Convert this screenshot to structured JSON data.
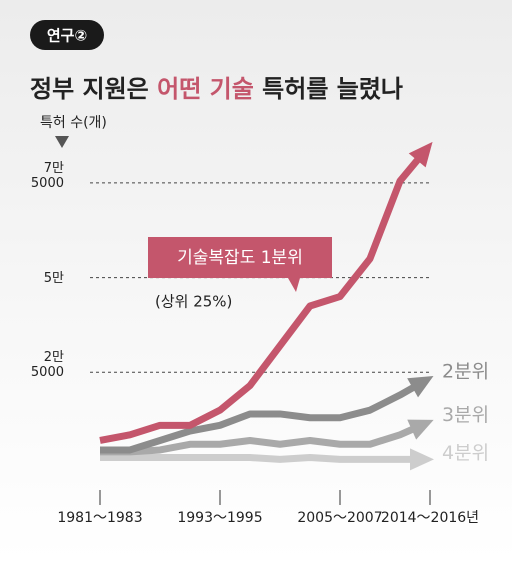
{
  "chart_data": {
    "type": "line",
    "badge": "연구②",
    "title": [
      "정부 지원은 ",
      "어떤 기술",
      " 특허를 늘렸나"
    ],
    "y_axis_label": "특허 수(개)",
    "categories": [
      "1981～1983",
      null,
      null,
      null,
      "1993～1995",
      null,
      null,
      null,
      "2005～2007",
      null,
      null,
      "2014～2016년"
    ],
    "series": [
      {
        "name": "기술복잡도 1분위",
        "color": "#c4566c",
        "values": [
          7000,
          8500,
          11000,
          11000,
          15000,
          21500,
          32000,
          42500,
          45000,
          55000,
          75500,
          85000
        ]
      },
      {
        "name": "2분위",
        "color": "#8c8c8c",
        "values": [
          4500,
          4500,
          7000,
          9500,
          11000,
          14000,
          14000,
          13000,
          13000,
          15000,
          19000,
          23500
        ]
      },
      {
        "name": "3분위",
        "color": "#a9a9a9",
        "values": [
          4000,
          4000,
          4500,
          6000,
          6000,
          7000,
          6000,
          7000,
          6000,
          6000,
          8500,
          12000
        ]
      },
      {
        "name": "4분위",
        "color": "#cdcdcd",
        "values": [
          2500,
          2500,
          2500,
          2500,
          2500,
          2500,
          2000,
          2500,
          2000,
          2000,
          2000,
          2000
        ]
      }
    ],
    "annotation": "(상위 25%)",
    "ylim": [
      0,
      85000
    ],
    "yticks": [
      {
        "value": 25000,
        "label": "2만\n5000"
      },
      {
        "value": 50000,
        "label": "5만"
      },
      {
        "value": 75000,
        "label": "7만\n5000"
      }
    ],
    "grid": true,
    "title_highlight_color": "#c4566c"
  }
}
